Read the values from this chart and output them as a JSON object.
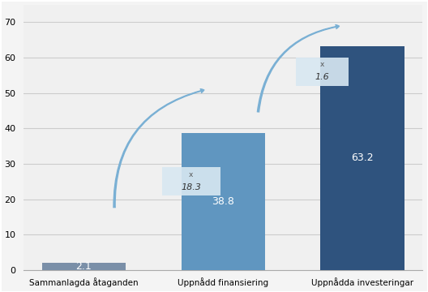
{
  "categories": [
    "Sammanlagda åtaganden",
    "Uppnådd finansiering",
    "Uppnådda investeringar"
  ],
  "values": [
    2.1,
    38.8,
    63.2
  ],
  "bar_colors": [
    "#7a8fa8",
    "#6096c0",
    "#2f537e"
  ],
  "bar_labels": [
    "2.1",
    "38.8",
    "63.2"
  ],
  "ylim": [
    0,
    75
  ],
  "yticks": [
    0,
    10,
    20,
    30,
    40,
    50,
    60,
    70
  ],
  "background_color": "#f4f4f4",
  "plot_bg": "#f0f0f0",
  "grid_color": "#cccccc",
  "annotation_box_color": "#d8e8f2",
  "arrow_color": "#7ab0d4",
  "border_color": "#aaaaaa"
}
